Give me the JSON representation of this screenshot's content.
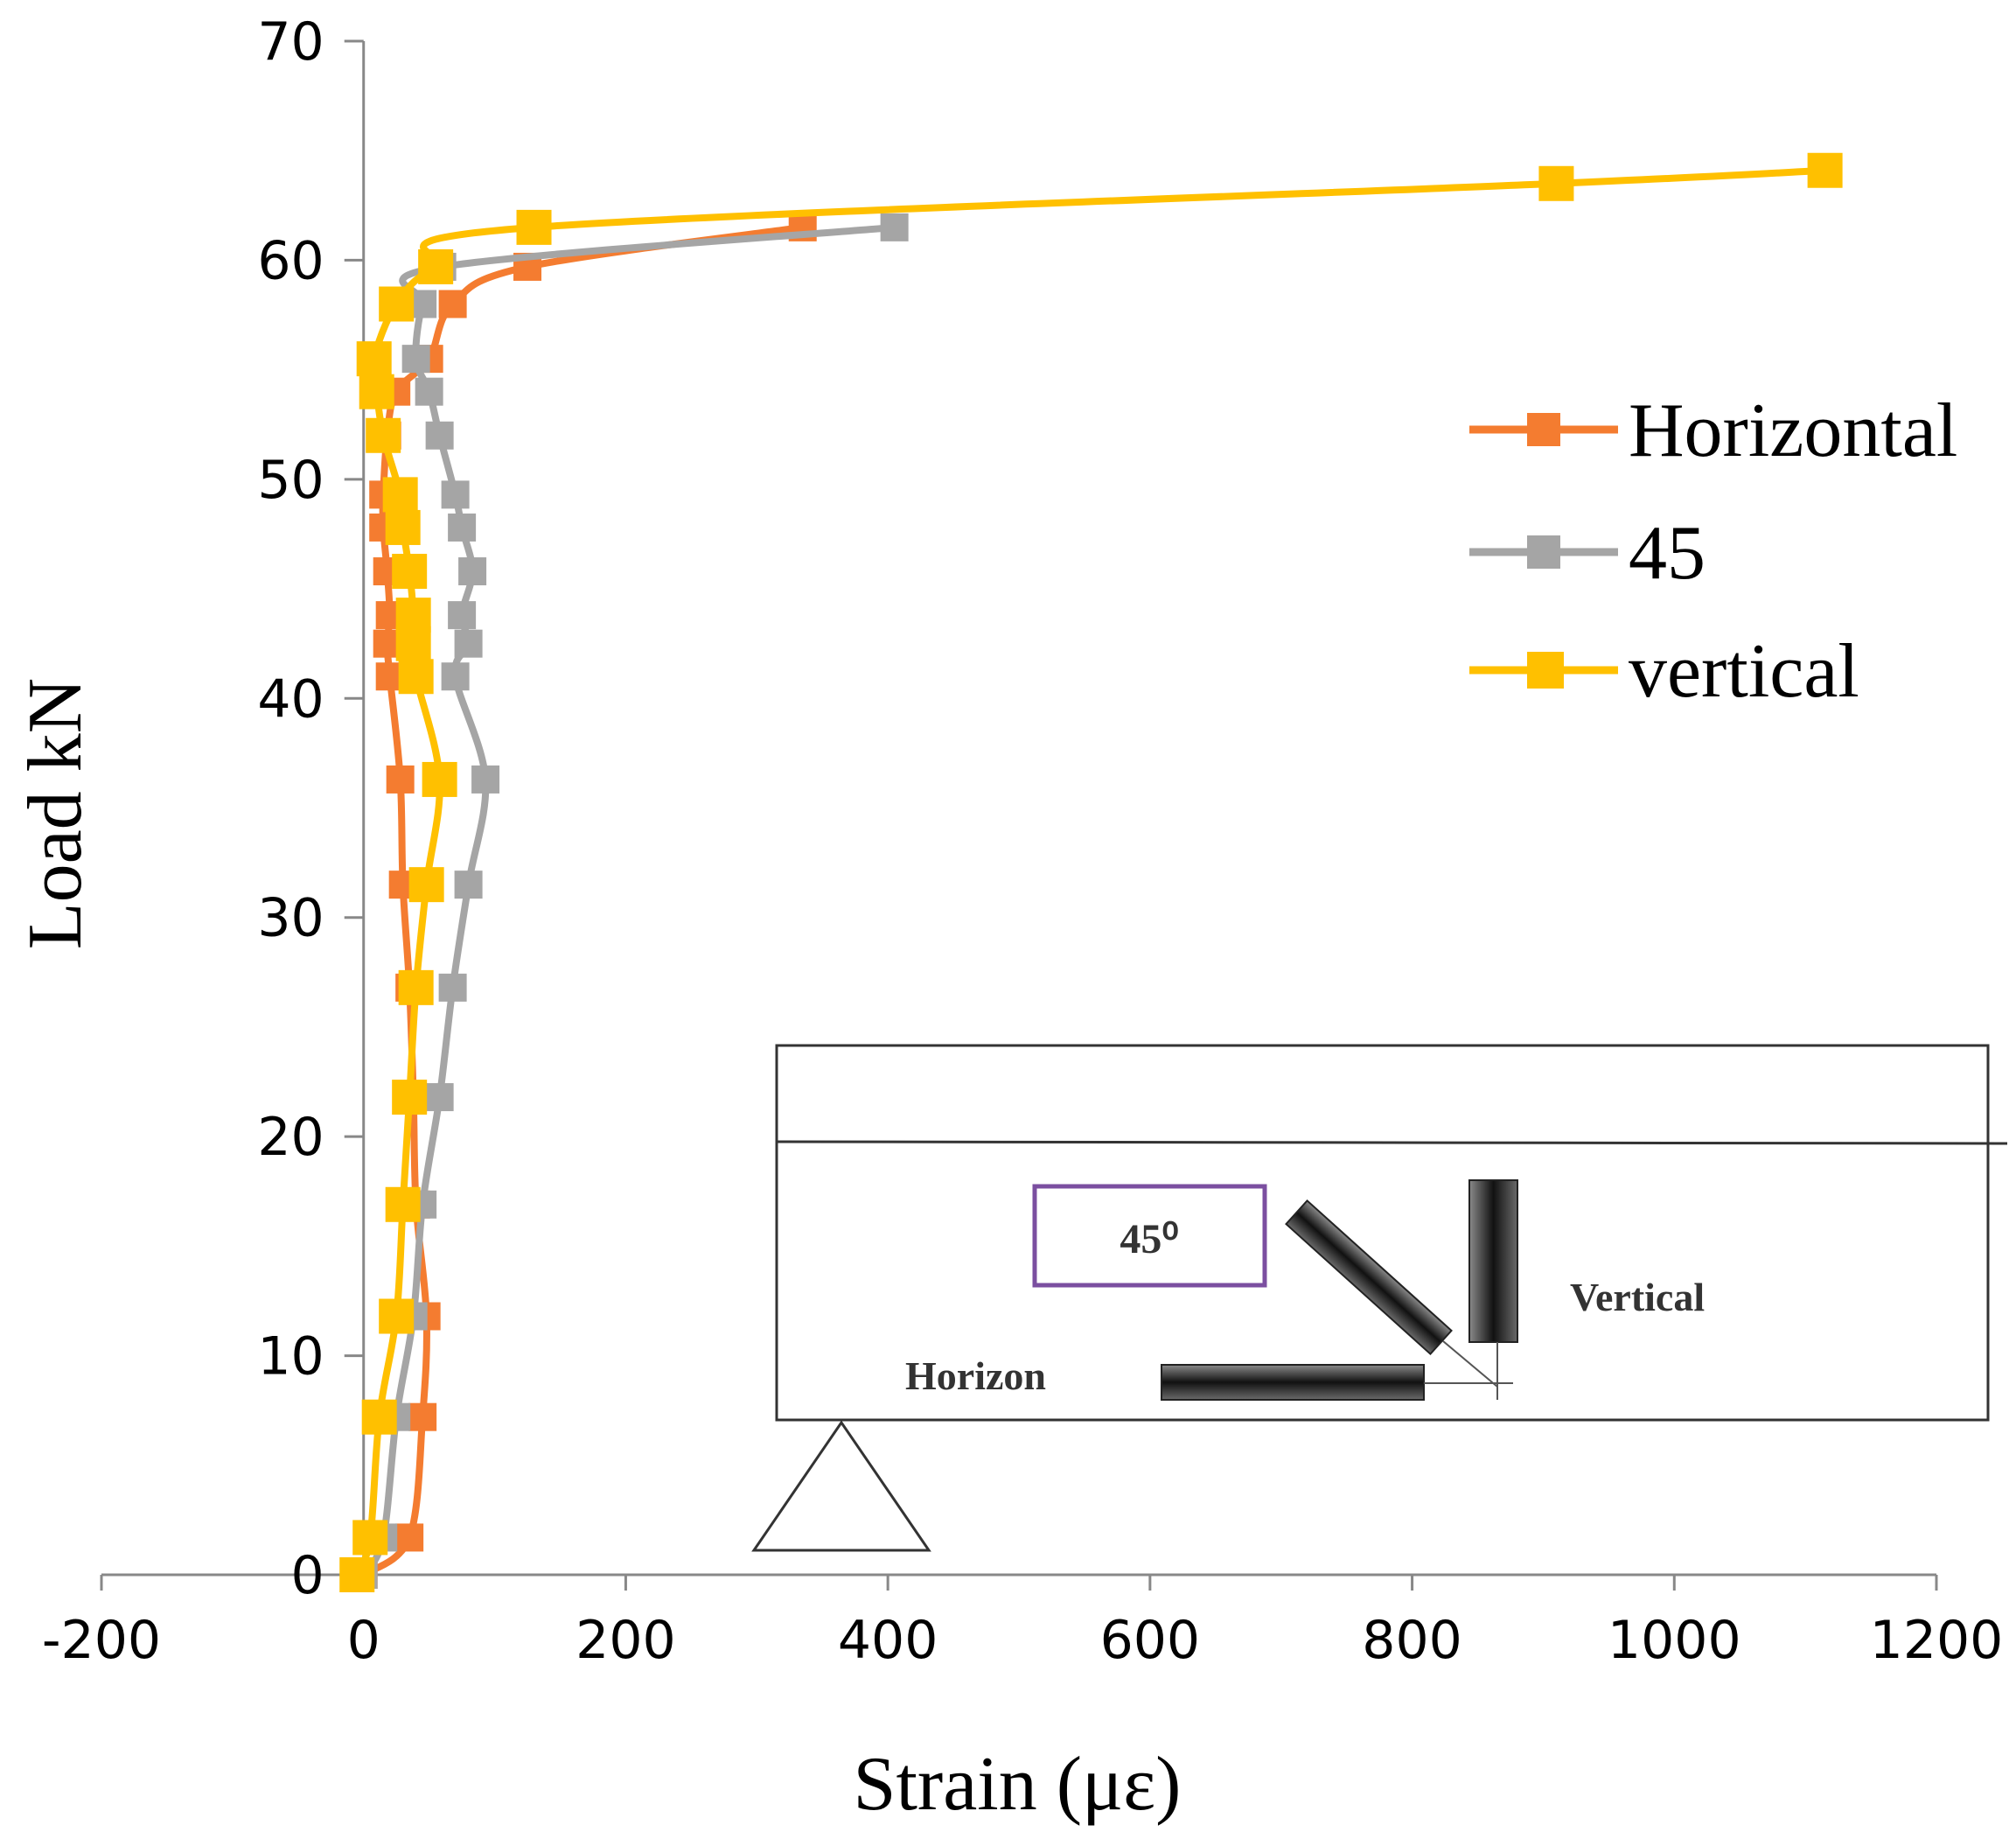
{
  "chart_data": {
    "type": "line",
    "xlabel": "Strain (με)",
    "ylabel": "Load kN",
    "xlim": [
      -200,
      1200
    ],
    "ylim": [
      0,
      70
    ],
    "x_ticks": [
      -200,
      0,
      200,
      400,
      600,
      800,
      1000,
      1200
    ],
    "y_ticks": [
      0,
      10,
      20,
      30,
      40,
      50,
      60,
      70
    ],
    "grid": false,
    "legend_position": "right",
    "series": [
      {
        "name": "Horizontal",
        "color": "#F47C30",
        "points": [
          [
            0,
            0
          ],
          [
            35,
            1.7
          ],
          [
            45,
            7.2
          ],
          [
            48,
            11.8
          ],
          [
            40,
            16.9
          ],
          [
            38,
            21.8
          ],
          [
            35,
            26.8
          ],
          [
            30,
            31.5
          ],
          [
            28,
            36.3
          ],
          [
            20,
            41
          ],
          [
            18,
            42.5
          ],
          [
            20,
            43.8
          ],
          [
            18,
            45.8
          ],
          [
            15,
            47.8
          ],
          [
            15,
            49.3
          ],
          [
            18,
            52
          ],
          [
            25,
            54
          ],
          [
            50,
            55.5
          ],
          [
            68,
            58
          ],
          [
            125,
            59.7
          ],
          [
            335,
            61.5
          ]
        ]
      },
      {
        "name": "45",
        "color": "#A5A5A5",
        "points": [
          [
            0,
            0
          ],
          [
            15,
            1.7
          ],
          [
            25,
            7.2
          ],
          [
            38,
            11.8
          ],
          [
            45,
            16.9
          ],
          [
            58,
            21.8
          ],
          [
            68,
            26.8
          ],
          [
            80,
            31.5
          ],
          [
            93,
            36.3
          ],
          [
            70,
            41
          ],
          [
            80,
            42.5
          ],
          [
            75,
            43.8
          ],
          [
            83,
            45.8
          ],
          [
            75,
            47.8
          ],
          [
            70,
            49.3
          ],
          [
            58,
            52
          ],
          [
            50,
            54
          ],
          [
            40,
            55.5
          ],
          [
            45,
            58
          ],
          [
            60,
            59.7
          ],
          [
            405,
            61.5
          ]
        ]
      },
      {
        "name": "vertical",
        "color": "#FFC000",
        "points": [
          [
            -5,
            0
          ],
          [
            5,
            1.7
          ],
          [
            12,
            7.2
          ],
          [
            25,
            11.8
          ],
          [
            30,
            16.9
          ],
          [
            35,
            21.8
          ],
          [
            40,
            26.8
          ],
          [
            48,
            31.5
          ],
          [
            58,
            36.3
          ],
          [
            40,
            41
          ],
          [
            38,
            42.5
          ],
          [
            38,
            43.8
          ],
          [
            35,
            45.8
          ],
          [
            30,
            47.8
          ],
          [
            28,
            49.3
          ],
          [
            15,
            52
          ],
          [
            10,
            54
          ],
          [
            8,
            55.5
          ],
          [
            25,
            58
          ],
          [
            55,
            59.7
          ],
          [
            130,
            61.5
          ],
          [
            910,
            63.5
          ],
          [
            1115,
            64.1
          ]
        ]
      }
    ]
  },
  "inset": {
    "angle_label": "45⁰",
    "vertical_label": "Vertical",
    "horizon_label": "Horizon"
  }
}
